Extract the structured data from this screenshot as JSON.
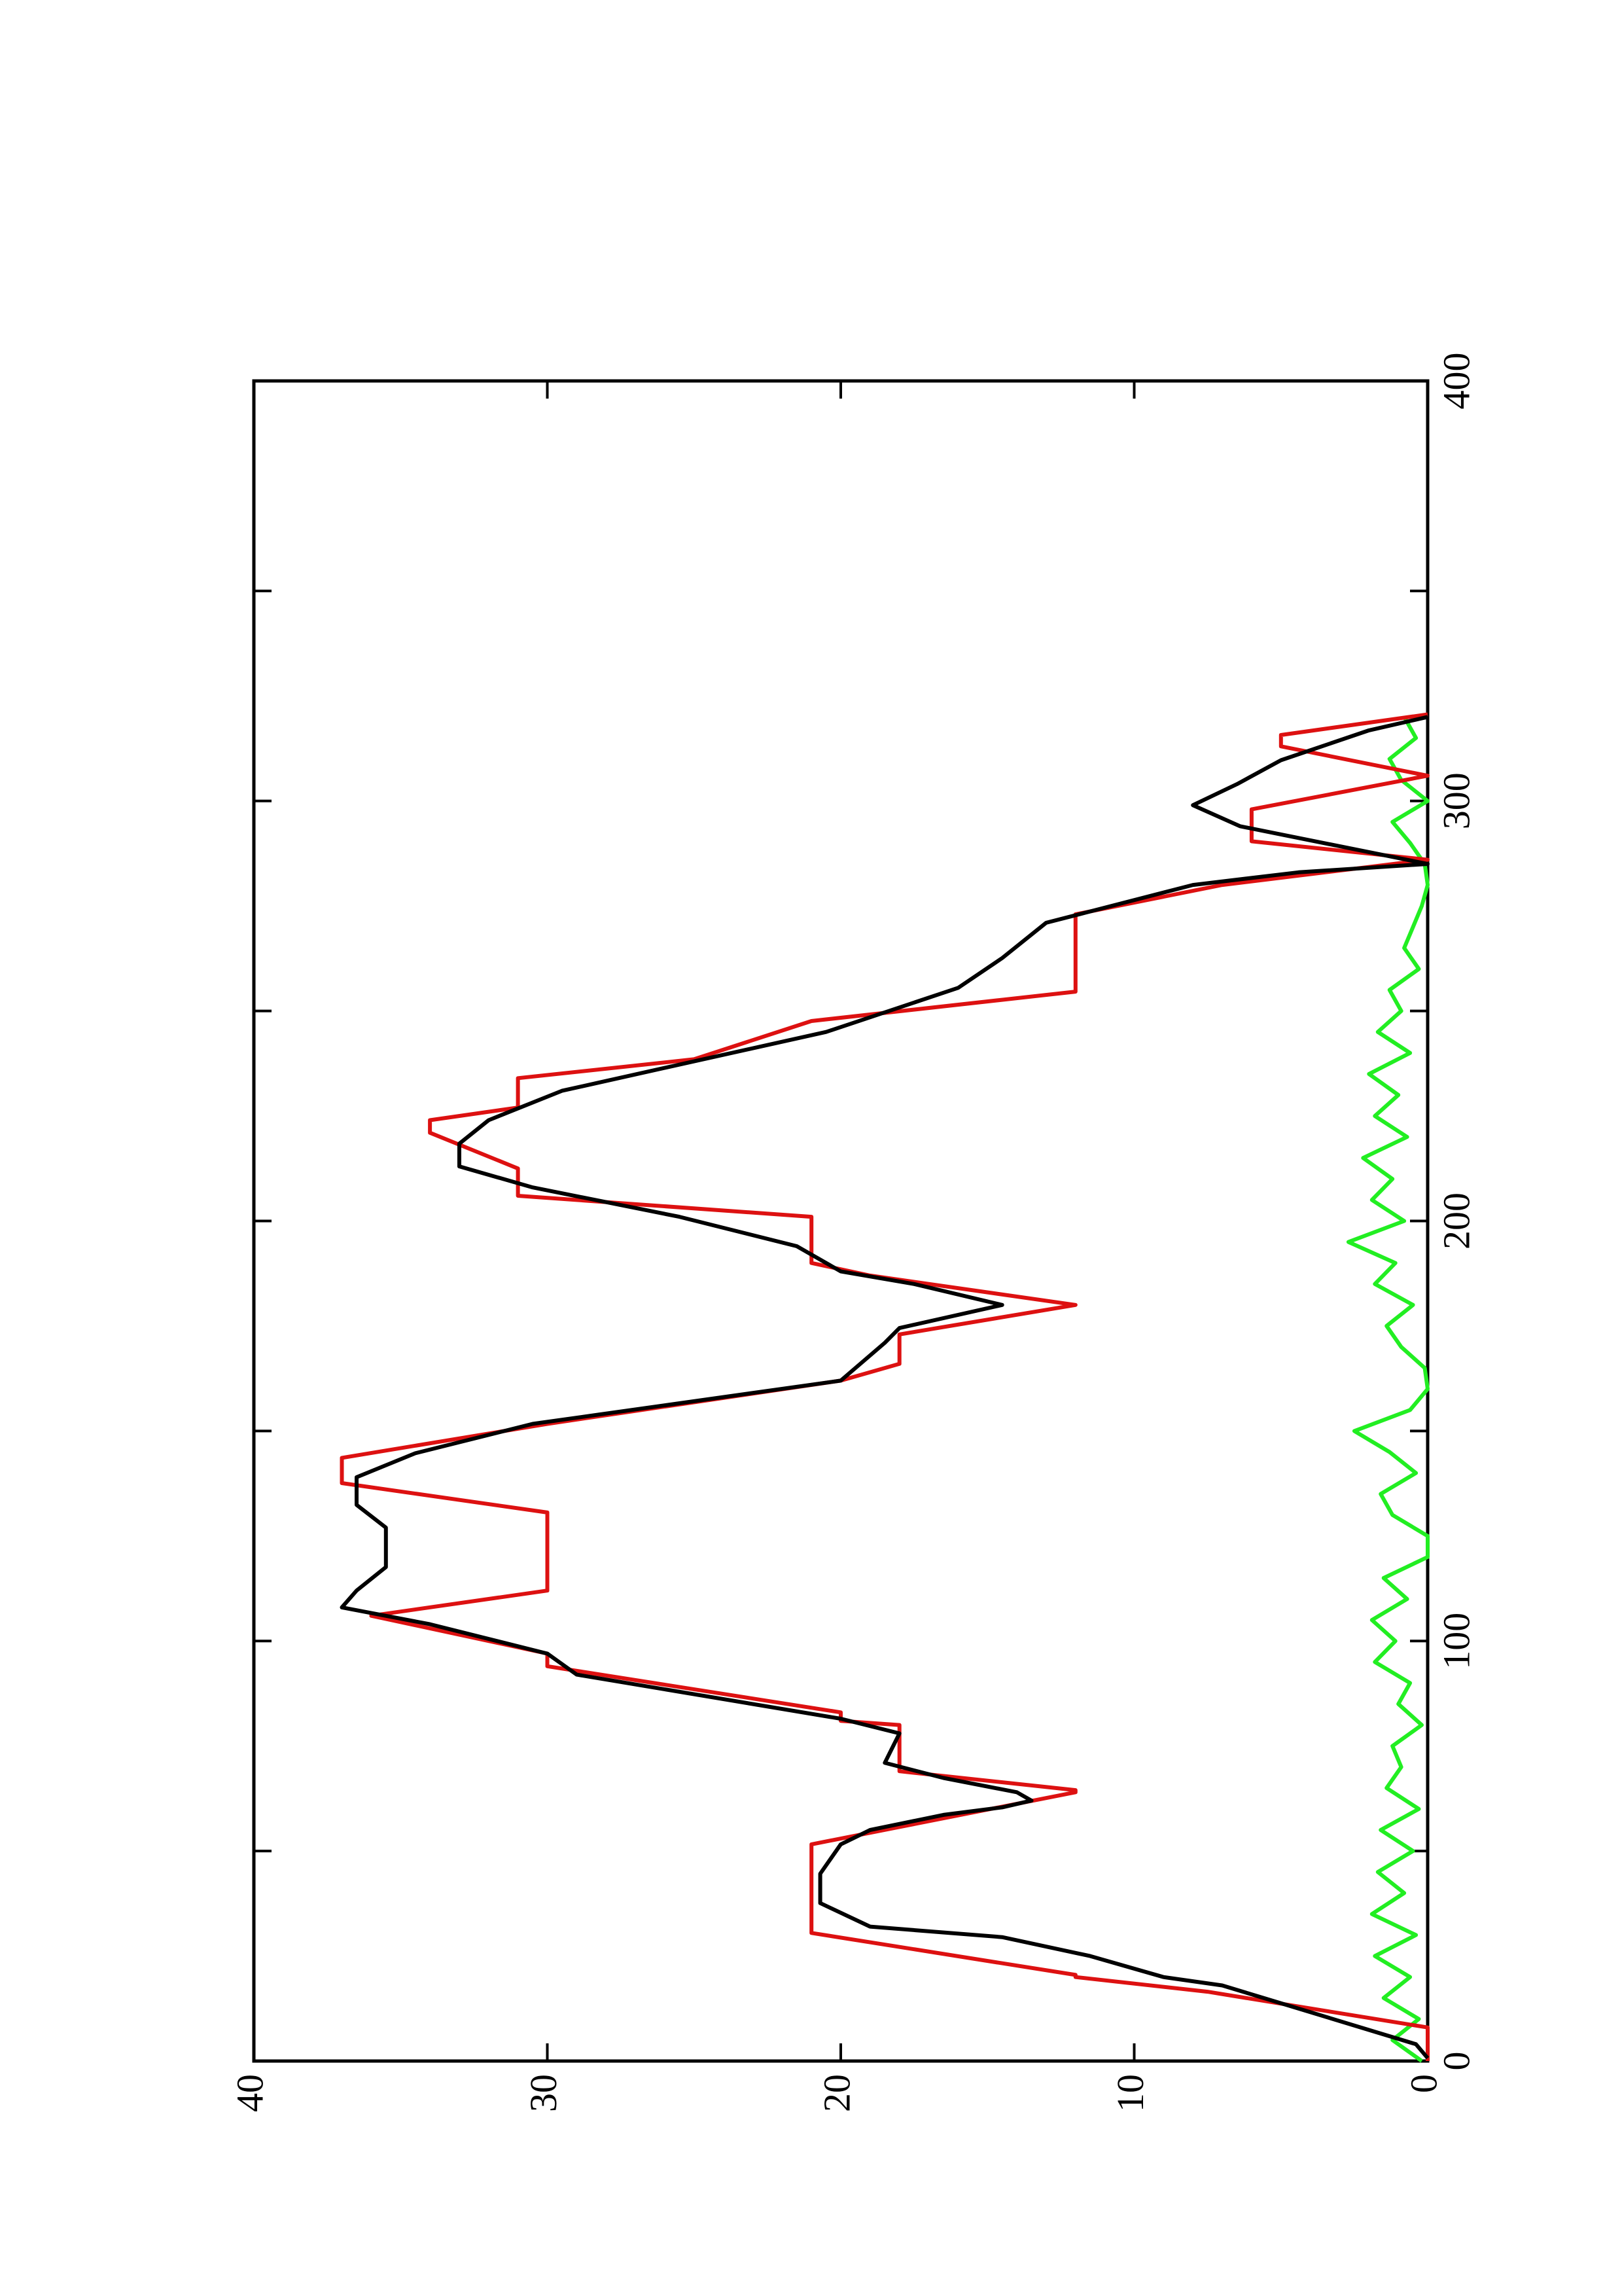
{
  "chart_data": {
    "type": "line",
    "orientation": "rotated",
    "xlim": [
      0,
      400
    ],
    "xticks": [
      0,
      100,
      200,
      300,
      400
    ],
    "xminor_ticks": [
      50,
      150,
      250,
      350
    ],
    "ylim": [
      0,
      40
    ],
    "yticks": [
      0,
      10,
      20,
      30,
      40
    ],
    "series": [
      {
        "name": "red",
        "color": "#dd1111",
        "x": [
          0,
          8,
          16.5,
          20,
          20.5,
          30.5,
          51.6,
          64,
          64.5,
          69,
          80,
          81,
          83,
          94,
          97,
          101.5,
          106,
          112,
          130.6,
          137.6,
          143.6,
          151.7,
          162,
          166,
          173,
          180,
          187,
          190,
          201,
          206,
          212.5,
          221,
          224,
          227,
          234,
          238.5,
          247.6,
          254.6,
          273,
          280,
          286,
          290.4,
          298,
          306,
          313,
          315.7,
          320.6
        ],
        "values": [
          0,
          0,
          7.5,
          12,
          12,
          21,
          21,
          12,
          12,
          18,
          18,
          20,
          20,
          30,
          30,
          33,
          36,
          30,
          30,
          37,
          37,
          30,
          20,
          18,
          18,
          12,
          19,
          21,
          21,
          31,
          31,
          34,
          34,
          31,
          31,
          25,
          21,
          12,
          12,
          7,
          0,
          6,
          6,
          0,
          5,
          5,
          0
        ]
      },
      {
        "name": "black",
        "color": "#000000",
        "x": [
          0.7,
          4,
          18,
          20,
          25,
          29.5,
          32,
          37.6,
          44.6,
          51.6,
          55,
          58.6,
          60.4,
          62,
          64,
          67.4,
          71,
          78,
          81.5,
          92,
          97,
          104,
          108,
          112,
          117.6,
          127,
          132.4,
          139,
          144.7,
          151.7,
          162,
          171,
          174.5,
          180,
          185,
          188,
          194,
          201,
          208,
          213,
          218.4,
          224,
          231,
          238,
          245,
          255.5,
          262.6,
          271,
          280,
          283,
          285,
          294,
          299,
          304,
          309.7,
          316.8,
          320
        ],
        "values": [
          0,
          0.4,
          7,
          9,
          11.5,
          14.5,
          19,
          20.7,
          20.7,
          20,
          19,
          16.5,
          14.5,
          13.5,
          14,
          16.5,
          18.5,
          18,
          20,
          29,
          30,
          34,
          37,
          36.5,
          35.5,
          35.5,
          36.5,
          36.5,
          34.5,
          30.5,
          20,
          18.5,
          18,
          14.5,
          17.5,
          20,
          21.5,
          25.5,
          30.5,
          33,
          33,
          32,
          29.5,
          25,
          20.5,
          16,
          14.5,
          13,
          8,
          4.4,
          0,
          6.4,
          8,
          6.5,
          5,
          2,
          0
        ]
      },
      {
        "name": "green",
        "color": "#22ee22",
        "x": [
          0,
          5,
          10,
          15,
          20,
          25,
          30,
          35,
          40,
          45,
          50,
          55,
          60,
          65,
          70,
          75,
          80,
          85,
          90,
          95,
          100,
          105,
          110,
          115,
          120,
          125,
          130,
          135,
          140,
          145,
          150,
          155,
          160,
          165,
          170,
          175,
          180,
          185,
          190,
          195,
          200,
          205,
          210,
          215,
          220,
          225,
          230,
          235,
          240,
          245,
          250,
          255,
          260,
          265,
          270,
          275,
          280,
          285,
          290,
          295,
          300,
          305,
          310,
          315,
          320
        ],
        "values": [
          0.2,
          1.2,
          0.3,
          1.5,
          0.6,
          1.8,
          0.4,
          1.9,
          0.8,
          1.7,
          0.5,
          1.6,
          0.3,
          1.4,
          0.9,
          1.2,
          0.2,
          1.0,
          0.6,
          1.8,
          1.1,
          1.9,
          0.7,
          1.5,
          0,
          0,
          1.2,
          1.6,
          0.4,
          1.3,
          2.5,
          0.6,
          0,
          0.1,
          0.9,
          1.4,
          0.5,
          1.8,
          1.1,
          2.7,
          0.8,
          1.9,
          1.2,
          2.2,
          0.7,
          1.8,
          1.0,
          2.0,
          0.6,
          1.7,
          0.9,
          1.3,
          0.3,
          0.8,
          0.5,
          0.2,
          0,
          0.1,
          0.6,
          1.2,
          0,
          0.9,
          1.3,
          0.4,
          0.8
        ]
      }
    ]
  }
}
